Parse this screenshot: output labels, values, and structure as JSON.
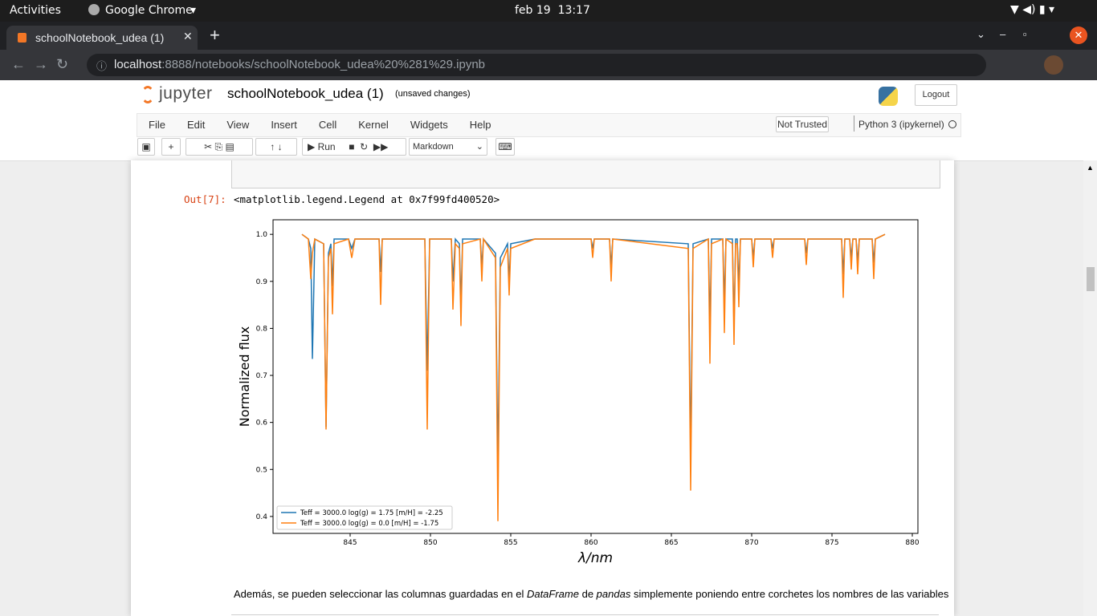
{
  "topbar": {
    "activities": "Activities",
    "app": "Google Chrome",
    "clock": "feb 19  13:17"
  },
  "browser": {
    "tab_title": "schoolNotebook_udea (1)",
    "url_host": "localhost",
    "url_path": ":8888/notebooks/schoolNotebook_udea%20%281%29.ipynb"
  },
  "notebook": {
    "logo": "jupyter",
    "title": "schoolNotebook_udea (1)",
    "save_status": "(unsaved changes)",
    "logout": "Logout",
    "menu": [
      "File",
      "Edit",
      "View",
      "Insert",
      "Cell",
      "Kernel",
      "Widgets",
      "Help"
    ],
    "trust": "Not Trusted",
    "kernel": "Python 3 (ipykernel)",
    "run": "Run",
    "cell_type": "Markdown",
    "out_prompt": "Out[7]:",
    "out_text": "<matplotlib.legend.Legend at 0x7f99fd400520>",
    "paragraph": [
      "Además, se pueden seleccionar las columnas guardadas en el ",
      "DataFrame",
      " de ",
      "pandas",
      " simplemente poniendo entre corchetes los nombres de las variables"
    ]
  },
  "chart_data": {
    "type": "line",
    "xlabel": "λ/nm",
    "ylabel": "Normalized flux",
    "x": [
      842.0,
      842.4,
      842.55,
      842.65,
      842.8,
      843.35,
      843.5,
      843.65,
      843.8,
      843.9,
      844.0,
      844.9,
      845.1,
      845.3,
      846.8,
      846.9,
      847.0,
      849.65,
      849.8,
      849.95,
      851.3,
      851.4,
      851.55,
      851.8,
      851.9,
      852.0,
      853.1,
      853.2,
      853.3,
      854.05,
      854.2,
      854.35,
      854.8,
      854.9,
      855.0,
      856.5,
      860.0,
      860.1,
      860.2,
      861.15,
      861.25,
      861.35,
      866.05,
      866.2,
      866.35,
      867.3,
      867.4,
      867.5,
      868.2,
      868.3,
      868.4,
      868.8,
      868.9,
      869.0,
      869.1,
      869.2,
      869.3,
      870.0,
      870.1,
      870.2,
      871.2,
      871.3,
      871.4,
      873.3,
      873.4,
      873.5,
      875.6,
      875.7,
      875.8,
      876.1,
      876.2,
      876.3,
      876.5,
      876.6,
      876.7,
      877.5,
      877.6,
      877.7,
      878.3
    ],
    "series": [
      {
        "name": "Teff = 3000.0 log(g) = 1.75 [m/H] = -2.25",
        "color": "#1f77b4",
        "values": [
          1.0,
          0.99,
          0.97,
          0.735,
          0.99,
          0.98,
          0.59,
          0.96,
          0.98,
          0.89,
          0.99,
          0.99,
          0.97,
          0.99,
          0.99,
          0.92,
          0.99,
          0.99,
          0.71,
          0.99,
          0.99,
          0.9,
          0.99,
          0.98,
          0.85,
          0.99,
          0.99,
          0.93,
          0.99,
          0.96,
          0.5,
          0.95,
          0.98,
          0.9,
          0.98,
          0.99,
          0.99,
          0.97,
          0.99,
          0.99,
          0.93,
          0.99,
          0.98,
          0.53,
          0.98,
          0.99,
          0.8,
          0.99,
          0.99,
          0.85,
          0.99,
          0.99,
          0.8,
          0.99,
          0.99,
          0.89,
          0.99,
          0.99,
          0.95,
          0.99,
          0.99,
          0.97,
          0.99,
          0.99,
          0.96,
          0.99,
          0.99,
          0.915,
          0.99,
          0.99,
          0.95,
          0.99,
          0.99,
          0.94,
          0.99,
          0.99,
          0.94,
          0.99,
          1.0
        ]
      },
      {
        "name": "Teff = 3000.0 log(g) = 0.0 [m/H] = -1.75",
        "color": "#ff7f0e",
        "values": [
          1.0,
          0.99,
          0.905,
          0.96,
          0.99,
          0.98,
          0.585,
          0.95,
          0.97,
          0.83,
          0.98,
          0.99,
          0.95,
          0.99,
          0.99,
          0.85,
          0.99,
          0.99,
          0.585,
          0.99,
          0.99,
          0.84,
          0.98,
          0.97,
          0.805,
          0.98,
          0.99,
          0.9,
          0.99,
          0.95,
          0.39,
          0.93,
          0.97,
          0.87,
          0.97,
          0.99,
          0.99,
          0.95,
          0.99,
          0.99,
          0.9,
          0.99,
          0.97,
          0.455,
          0.97,
          0.99,
          0.725,
          0.98,
          0.99,
          0.79,
          0.99,
          0.98,
          0.765,
          0.98,
          0.98,
          0.845,
          0.99,
          0.99,
          0.93,
          0.99,
          0.99,
          0.95,
          0.99,
          0.99,
          0.935,
          0.99,
          0.99,
          0.865,
          0.99,
          0.99,
          0.925,
          0.99,
          0.99,
          0.915,
          0.99,
          0.99,
          0.905,
          0.99,
          1.0
        ]
      }
    ],
    "xlim": [
      840.2,
      880.35
    ],
    "ylim": [
      0.364,
      1.031
    ],
    "xticks": [
      845,
      850,
      855,
      860,
      865,
      870,
      875,
      880
    ],
    "yticks": [
      0.4,
      0.5,
      0.6,
      0.7,
      0.8,
      0.9,
      {
        "value": 1,
        "label": "1.0"
      }
    ],
    "legend": "lower left"
  }
}
